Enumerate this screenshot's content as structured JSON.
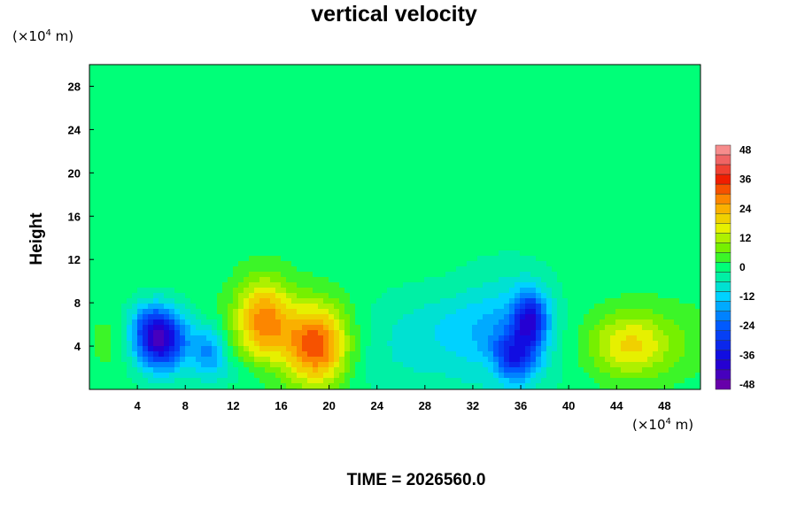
{
  "chart_data": {
    "type": "heatmap",
    "title": "vertical velocity",
    "ylabel": "Height",
    "y_unit_label": "(×10^4 m)",
    "x_unit_label": "(×10^4 m)",
    "unit_prefix": "(×10",
    "unit_exp": "4",
    "unit_suffix": " m)",
    "footer": "TIME = 2026560.0",
    "xlim": [
      0,
      51
    ],
    "ylim": [
      0,
      30
    ],
    "xticks": [
      4,
      8,
      12,
      16,
      20,
      24,
      28,
      32,
      36,
      40,
      44,
      48
    ],
    "yticks": [
      4,
      8,
      12,
      16,
      20,
      24,
      28
    ],
    "colorbar": {
      "min": -50,
      "max": 50,
      "step": 4,
      "ticks": [
        48,
        36,
        24,
        12,
        0,
        -12,
        -24,
        -36,
        -48
      ]
    },
    "background_value": 0,
    "features": [
      {
        "x": 6.0,
        "y": 4.5,
        "sx": 1.6,
        "sy": 2.0,
        "value": -40
      },
      {
        "x": 5.0,
        "y": 6.0,
        "sx": 1.3,
        "sy": 1.5,
        "value": -10
      },
      {
        "x": 10.0,
        "y": 3.5,
        "sx": 1.0,
        "sy": 1.6,
        "value": -18
      },
      {
        "x": 14.5,
        "y": 6.5,
        "sx": 1.6,
        "sy": 2.6,
        "value": 24
      },
      {
        "x": 19.0,
        "y": 4.0,
        "sx": 1.8,
        "sy": 2.6,
        "value": 30
      },
      {
        "x": 17.0,
        "y": 5.0,
        "sx": 4.0,
        "sy": 3.0,
        "value": 6
      },
      {
        "x": 27.0,
        "y": 4.0,
        "sx": 5.0,
        "sy": 3.5,
        "value": -7
      },
      {
        "x": 36.8,
        "y": 6.5,
        "sx": 1.0,
        "sy": 1.8,
        "value": -30
      },
      {
        "x": 35.5,
        "y": 3.0,
        "sx": 1.3,
        "sy": 1.5,
        "value": -22
      },
      {
        "x": 35.0,
        "y": 5.0,
        "sx": 2.8,
        "sy": 4.0,
        "value": -12
      },
      {
        "x": 33.5,
        "y": 2.0,
        "sx": 1.0,
        "sy": 1.2,
        "value": 4
      },
      {
        "x": 45.0,
        "y": 4.0,
        "sx": 2.2,
        "sy": 2.0,
        "value": 14
      },
      {
        "x": 47.0,
        "y": 4.5,
        "sx": 4.0,
        "sy": 2.5,
        "value": 6
      },
      {
        "x": 2.0,
        "y": 4.5,
        "sx": 1.5,
        "sy": 2.0,
        "value": 4
      },
      {
        "x": 12.0,
        "y": 1.5,
        "sx": 2.0,
        "sy": 1.0,
        "value": -5
      },
      {
        "x": 31.0,
        "y": 6.0,
        "sx": 3.0,
        "sy": 2.0,
        "value": -4
      }
    ],
    "grid": false,
    "legend_position": "right"
  }
}
